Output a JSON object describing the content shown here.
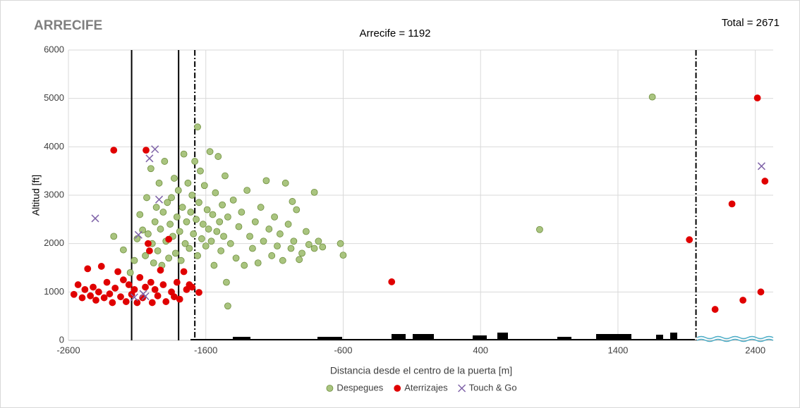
{
  "chart_data": {
    "type": "scatter",
    "corner_label": "ARRECIFE",
    "title": "Arrecife =  1192",
    "total_label": "Total = 2671",
    "xlabel": "Distancia desde el centro de la puerta [m]",
    "ylabel": "Altitud [ft]",
    "xlim": [
      -2600,
      2530
    ],
    "ylim": [
      0,
      6000
    ],
    "xticks": [
      -2600,
      -1600,
      -600,
      400,
      1400,
      2400
    ],
    "yticks": [
      0,
      1000,
      2000,
      3000,
      4000,
      5000,
      6000
    ],
    "grid": true,
    "legend": "bottom",
    "vlines": [
      {
        "x": -2140,
        "style": "solid"
      },
      {
        "x": -1798,
        "style": "solid"
      },
      {
        "x": -1680,
        "style": "dashdot"
      },
      {
        "x": 1968,
        "style": "dashdot"
      }
    ],
    "series": [
      {
        "name": "Despegues",
        "color": "#a9c47f",
        "marker": "circle",
        "x": [
          -2270,
          -2200,
          -2150,
          -2120,
          -2100,
          -2080,
          -2060,
          -2040,
          -2030,
          -2020,
          -2000,
          -1990,
          -1980,
          -1970,
          -1960,
          -1950,
          -1940,
          -1930,
          -1920,
          -1910,
          -1900,
          -1890,
          -1880,
          -1870,
          -1860,
          -1850,
          -1840,
          -1830,
          -1820,
          -1810,
          -1800,
          -1790,
          -1780,
          -1770,
          -1760,
          -1750,
          -1740,
          -1730,
          -1720,
          -1710,
          -1700,
          -1690,
          -1680,
          -1670,
          -1660,
          -1650,
          -1640,
          -1630,
          -1620,
          -1610,
          -1600,
          -1590,
          -1580,
          -1570,
          -1560,
          -1550,
          -1540,
          -1530,
          -1520,
          -1510,
          -1500,
          -1490,
          -1480,
          -1470,
          -1460,
          -1450,
          -1440,
          -1420,
          -1400,
          -1380,
          -1360,
          -1340,
          -1320,
          -1300,
          -1280,
          -1260,
          -1240,
          -1220,
          -1200,
          -1180,
          -1160,
          -1140,
          -1120,
          -1100,
          -1080,
          -1060,
          -1040,
          -1020,
          -1000,
          -980,
          -960,
          -940,
          -900,
          -870,
          -850,
          -780,
          -750,
          1650,
          830,
          -620,
          -600,
          -1440,
          -1660,
          -810,
          -970,
          -920,
          -810
        ],
        "y": [
          2150,
          1870,
          1400,
          1650,
          2100,
          2600,
          2280,
          1750,
          2950,
          2200,
          3550,
          2000,
          1600,
          2450,
          2750,
          1850,
          3250,
          2300,
          1550,
          2650,
          3700,
          2050,
          2850,
          1700,
          2400,
          2950,
          2150,
          3350,
          1800,
          2550,
          3100,
          2250,
          1650,
          2750,
          3850,
          2000,
          2450,
          3250,
          1900,
          2650,
          3000,
          2200,
          3700,
          2500,
          1750,
          2850,
          3500,
          2100,
          2400,
          3200,
          1950,
          2700,
          2300,
          3900,
          2050,
          2600,
          1550,
          3050,
          2250,
          3800,
          2450,
          1850,
          2800,
          2150,
          3400,
          1200,
          2550,
          2000,
          2900,
          1700,
          2350,
          2650,
          1550,
          3100,
          2150,
          1900,
          2450,
          1600,
          2750,
          2050,
          3300,
          2300,
          1750,
          2550,
          1950,
          2200,
          1650,
          3250,
          2400,
          1900,
          2050,
          2700,
          1800,
          2250,
          1980,
          2050,
          1930,
          5030,
          2290,
          2000,
          1760,
          710,
          4410,
          3060,
          2870,
          1670,
          1900
        ]
      },
      {
        "name": "Aterrizajes",
        "color": "#e00000",
        "marker": "circle",
        "x": [
          -2560,
          -2530,
          -2500,
          -2480,
          -2460,
          -2440,
          -2420,
          -2400,
          -2380,
          -2360,
          -2340,
          -2320,
          -2300,
          -2280,
          -2260,
          -2240,
          -2220,
          -2200,
          -2180,
          -2160,
          -2140,
          -2120,
          -2100,
          -2080,
          -2060,
          -2040,
          -2020,
          -2010,
          -2000,
          -1990,
          -1970,
          -1950,
          -1930,
          -1910,
          -1890,
          -1870,
          -1850,
          -1830,
          -1810,
          -1790,
          -1760,
          -1740,
          -1720,
          -1700,
          -1650,
          -2270,
          -2035,
          -247,
          1920,
          2107,
          2230,
          2310,
          2415,
          2440,
          2470
        ],
        "y": [
          950,
          1150,
          880,
          1050,
          1480,
          920,
          1100,
          830,
          1000,
          1530,
          880,
          1200,
          960,
          780,
          1080,
          1420,
          900,
          1250,
          800,
          1150,
          950,
          1050,
          780,
          1300,
          880,
          1100,
          2000,
          1850,
          1200,
          780,
          1050,
          920,
          1450,
          1150,
          800,
          2090,
          1000,
          900,
          1200,
          850,
          1420,
          1050,
          1150,
          1100,
          990,
          3930,
          3930,
          1210,
          2080,
          640,
          2820,
          830,
          5010,
          1000,
          3290
        ]
      },
      {
        "name": "Touch & Go",
        "color": "#7f63a8",
        "marker": "x",
        "x": [
          -2405,
          -2090,
          -1970,
          -2010,
          -1940,
          2445,
          -2120,
          -2055,
          -2040
        ],
        "y": [
          2520,
          2180,
          3950,
          3760,
          2910,
          3600,
          890,
          960,
          910
        ]
      }
    ]
  }
}
